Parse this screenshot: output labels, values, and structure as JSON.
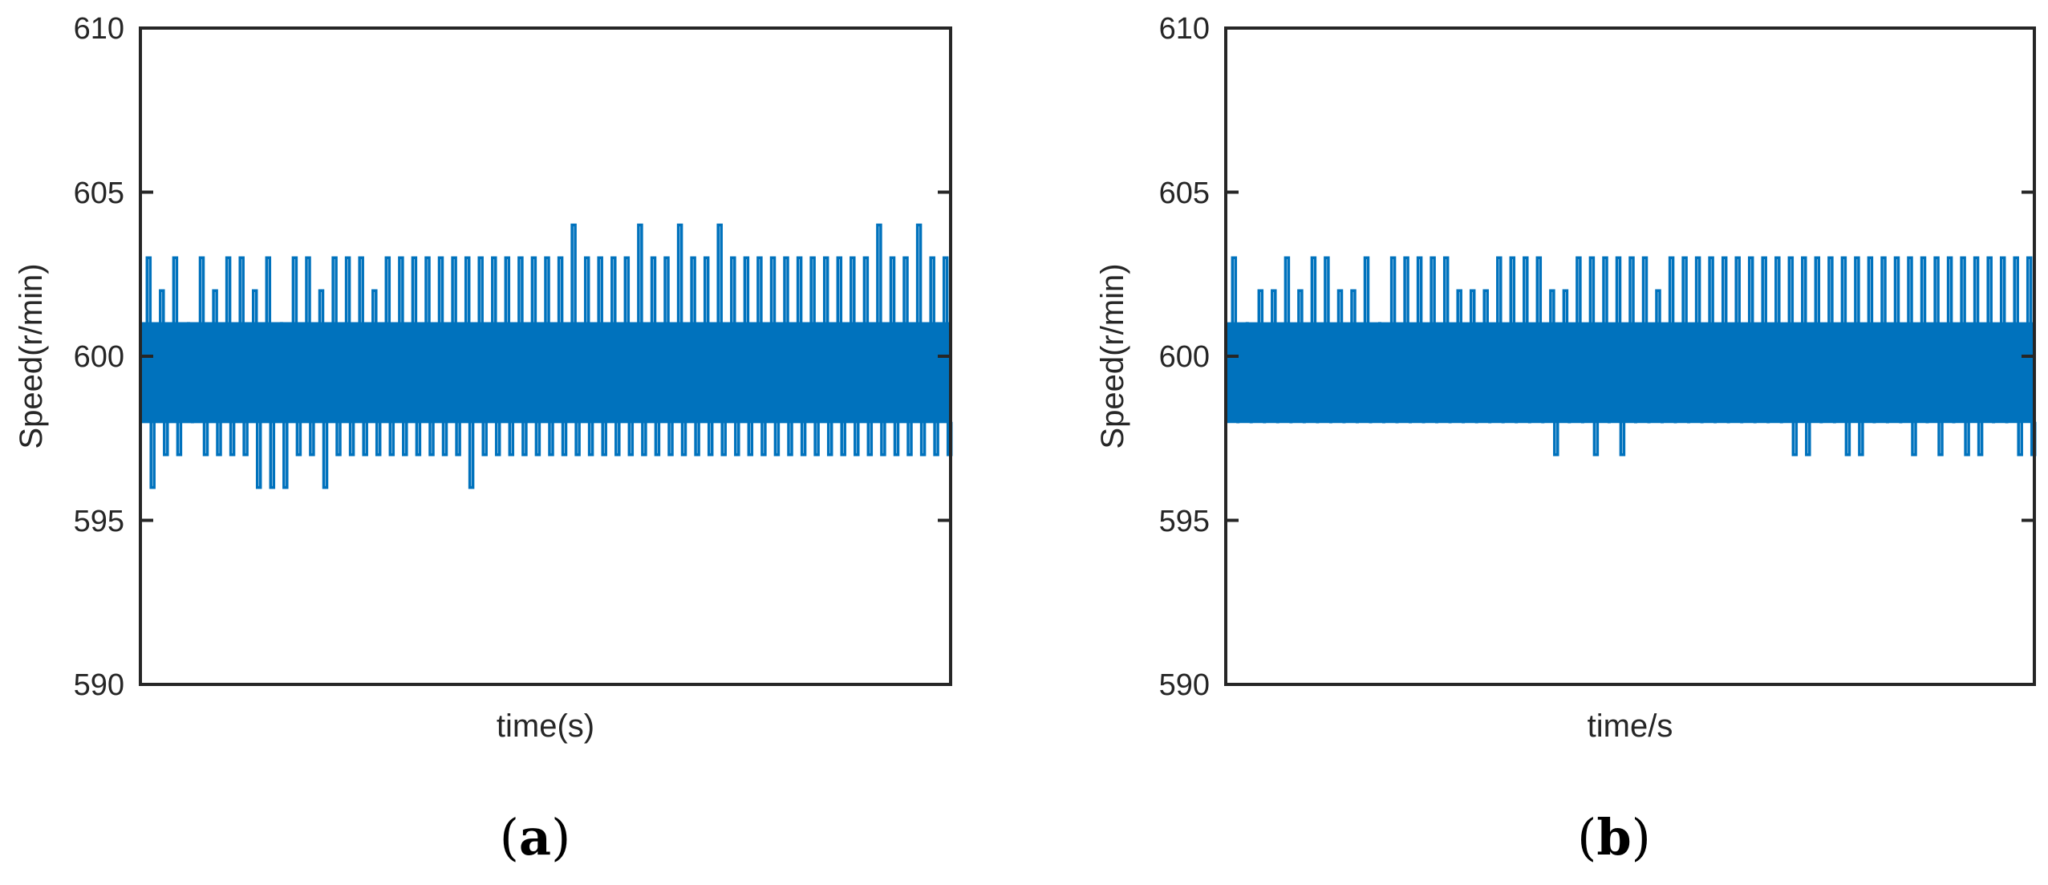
{
  "colors": {
    "series": "#0072BD",
    "axis": "#262626"
  },
  "chart_data": [
    {
      "type": "line",
      "panel_label_open": "(",
      "panel_label_letter": "a",
      "panel_label_close": ")",
      "xlabel": "time(s)",
      "ylabel": "Speed(r/min)",
      "ylim": [
        590,
        610
      ],
      "yticks": [
        590,
        595,
        600,
        605,
        610
      ],
      "ytick_labels": [
        "590",
        "595",
        "600",
        "605",
        "610"
      ],
      "xticks_visible": false,
      "grid": false,
      "series": [
        {
          "base_band": [
            598,
            601
          ],
          "upper_spikes": [
            603,
            602,
            603,
            601,
            603,
            602,
            603,
            603,
            602,
            603,
            601,
            603,
            603,
            602,
            603,
            603,
            603,
            602,
            603,
            603,
            603,
            603,
            603,
            603,
            603,
            603,
            603,
            603,
            603,
            603,
            603,
            603,
            604,
            603,
            603,
            603,
            603,
            604,
            603,
            603,
            604,
            603,
            603,
            604,
            603,
            603,
            603,
            603,
            603,
            603,
            603,
            603,
            603,
            603,
            603,
            604,
            603,
            603,
            604,
            603,
            603
          ],
          "lower_spikes": [
            596,
            597,
            597,
            598,
            597,
            597,
            597,
            597,
            596,
            596,
            596,
            597,
            597,
            596,
            597,
            597,
            597,
            597,
            597,
            597,
            597,
            597,
            597,
            597,
            596,
            597,
            597,
            597,
            597,
            597,
            597,
            597,
            597,
            597,
            597,
            597,
            597,
            597,
            597,
            597,
            597,
            597,
            597,
            597,
            597,
            597,
            597,
            597,
            597,
            597,
            597,
            597,
            597,
            597,
            597,
            597,
            597,
            597,
            597,
            597,
            597
          ]
        }
      ]
    },
    {
      "type": "line",
      "panel_label_open": "(",
      "panel_label_letter": "b",
      "panel_label_close": ")",
      "xlabel": "time/s",
      "ylabel": "Speed(r/min)",
      "ylim": [
        590,
        610
      ],
      "yticks": [
        590,
        595,
        600,
        605,
        610
      ],
      "ytick_labels": [
        "590",
        "595",
        "600",
        "605",
        "610"
      ],
      "xticks_visible": false,
      "grid": false,
      "series": [
        {
          "base_band": [
            598,
            601
          ],
          "upper_spikes": [
            603,
            601,
            602,
            602,
            603,
            602,
            603,
            603,
            602,
            602,
            603,
            601,
            603,
            603,
            603,
            603,
            603,
            602,
            602,
            602,
            603,
            603,
            603,
            603,
            602,
            602,
            603,
            603,
            603,
            603,
            603,
            603,
            602,
            603,
            603,
            603,
            603,
            603,
            603,
            603,
            603,
            603,
            603,
            603,
            603,
            603,
            603,
            603,
            603,
            603,
            603,
            603,
            603,
            603,
            603,
            603,
            603,
            603,
            603,
            603,
            603
          ],
          "lower_spikes": [
            598,
            598,
            598,
            598,
            598,
            598,
            598,
            598,
            598,
            598,
            598,
            598,
            598,
            598,
            598,
            598,
            598,
            598,
            598,
            598,
            598,
            598,
            598,
            598,
            597,
            598,
            598,
            597,
            598,
            597,
            598,
            598,
            598,
            598,
            598,
            598,
            598,
            598,
            598,
            598,
            598,
            598,
            597,
            597,
            598,
            598,
            597,
            597,
            598,
            598,
            598,
            597,
            598,
            597,
            598,
            597,
            597,
            598,
            598,
            597,
            597
          ]
        }
      ]
    }
  ]
}
